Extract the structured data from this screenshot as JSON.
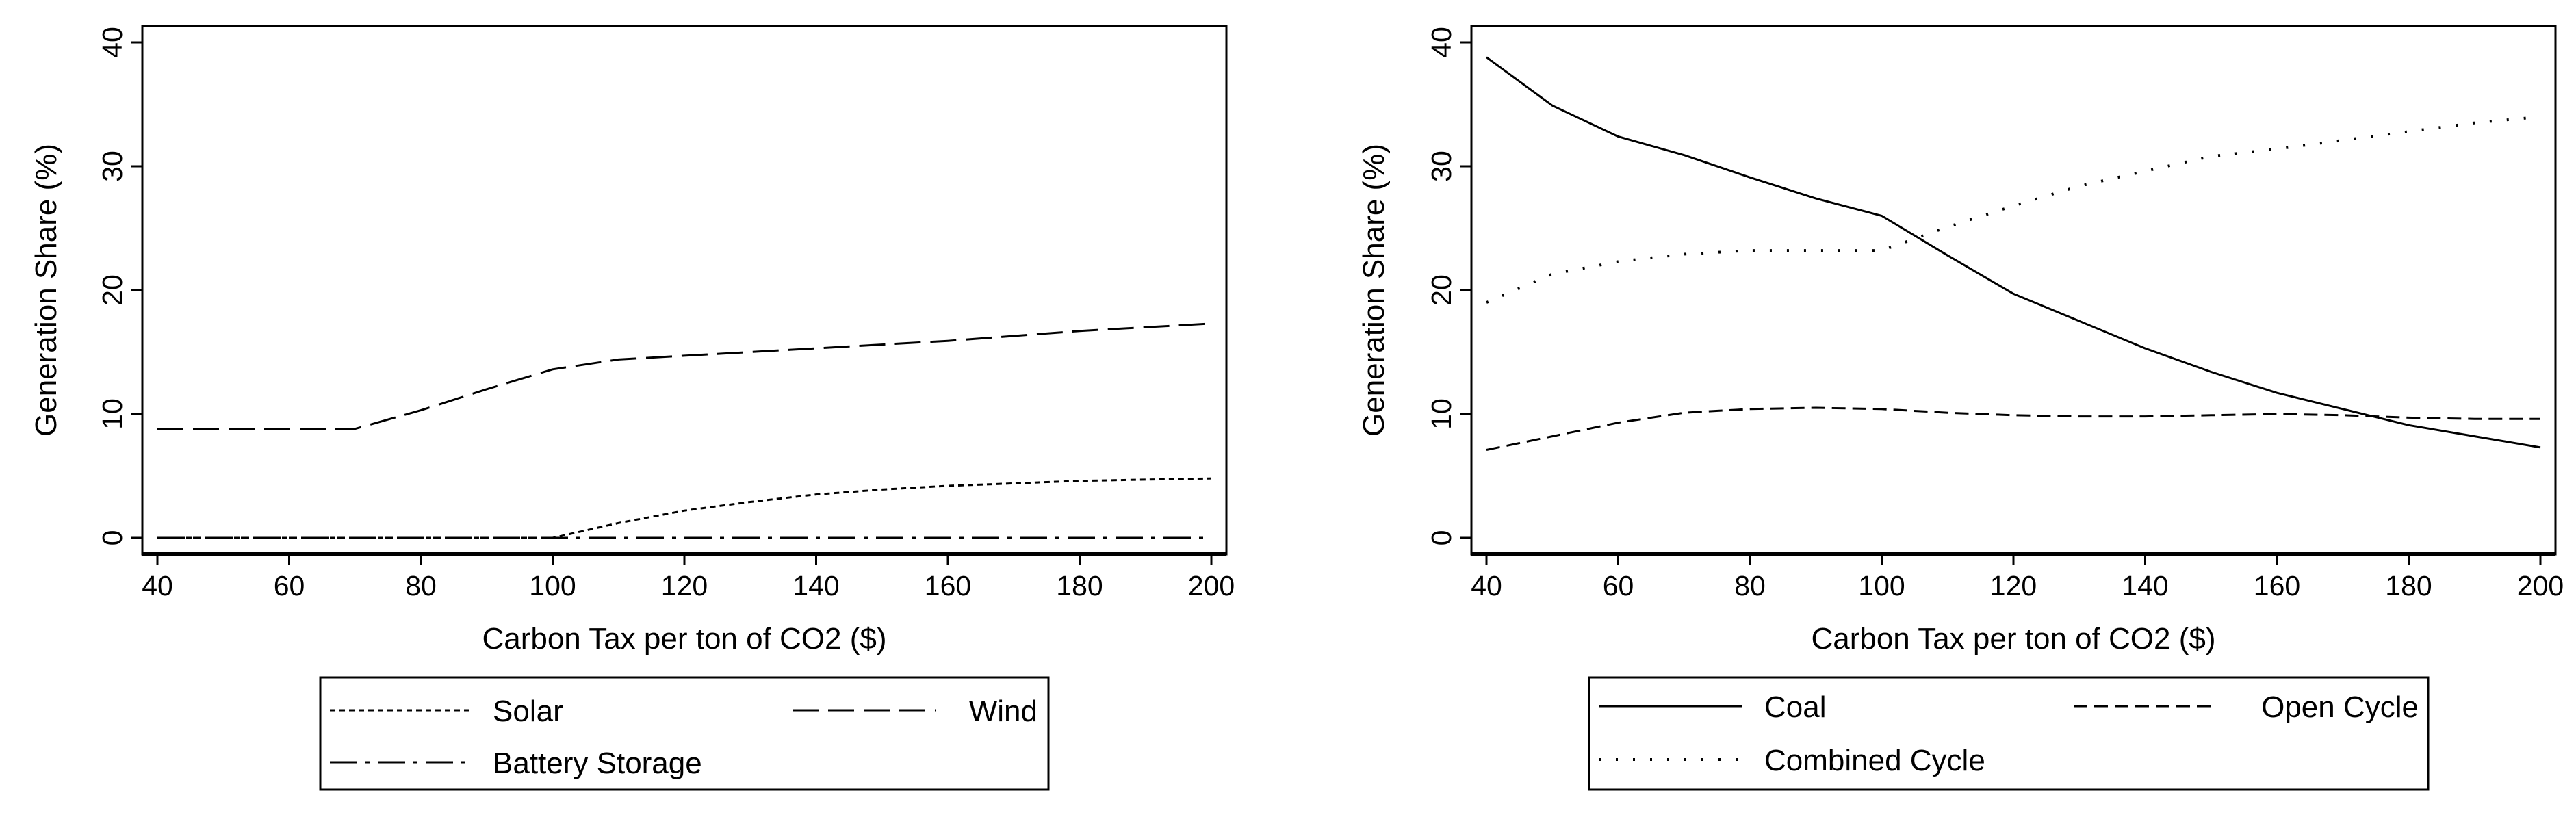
{
  "chart_data": [
    {
      "type": "line",
      "xlabel": "Carbon Tax per ton of CO2 ($)",
      "ylabel": "Generation Share (%)",
      "xlim": [
        40,
        200
      ],
      "ylim": [
        0,
        40
      ],
      "xticks": [
        "40",
        "60",
        "80",
        "100",
        "120",
        "140",
        "160",
        "180",
        "200"
      ],
      "yticks": [
        "0",
        "10",
        "20",
        "30",
        "40"
      ],
      "legend_position": "bottom",
      "series": [
        {
          "name": "Solar",
          "style": "short-dash",
          "x": [
            40,
            70,
            100,
            110,
            120,
            130,
            140,
            150,
            160,
            170,
            180,
            190,
            200
          ],
          "y": [
            0,
            0,
            0,
            1.2,
            2.2,
            2.9,
            3.5,
            3.9,
            4.2,
            4.4,
            4.6,
            4.7,
            4.8
          ]
        },
        {
          "name": "Wind",
          "style": "long-dash",
          "x": [
            40,
            70,
            80,
            90,
            100,
            110,
            120,
            130,
            140,
            150,
            160,
            170,
            180,
            190,
            200
          ],
          "y": [
            8.8,
            8.8,
            10.3,
            12,
            13.6,
            14.4,
            14.7,
            15,
            15.3,
            15.6,
            15.9,
            16.3,
            16.7,
            17,
            17.3
          ]
        },
        {
          "name": "Battery Storage",
          "style": "dash-dot",
          "x": [
            40,
            200
          ],
          "y": [
            0,
            0
          ]
        }
      ]
    },
    {
      "type": "line",
      "xlabel": "Carbon Tax per ton of CO2 ($)",
      "ylabel": "Generation Share (%)",
      "xlim": [
        40,
        200
      ],
      "ylim": [
        0,
        40
      ],
      "xticks": [
        "40",
        "60",
        "80",
        "100",
        "120",
        "140",
        "160",
        "180",
        "200"
      ],
      "yticks": [
        "0",
        "10",
        "20",
        "30",
        "40"
      ],
      "legend_position": "bottom",
      "series": [
        {
          "name": "Coal",
          "style": "solid",
          "x": [
            40,
            50,
            60,
            70,
            80,
            90,
            100,
            110,
            120,
            130,
            140,
            150,
            160,
            170,
            180,
            190,
            200
          ],
          "y": [
            38.8,
            34.9,
            32.4,
            30.9,
            29.1,
            27.4,
            26,
            22.8,
            19.7,
            17.5,
            15.3,
            13.4,
            11.7,
            10.4,
            9.1,
            8.2,
            7.3
          ]
        },
        {
          "name": "Open Cycle",
          "style": "dash",
          "x": [
            40,
            50,
            60,
            70,
            80,
            90,
            100,
            110,
            120,
            130,
            140,
            150,
            160,
            170,
            180,
            190,
            200
          ],
          "y": [
            7.1,
            8.2,
            9.3,
            10.1,
            10.4,
            10.5,
            10.4,
            10.1,
            9.9,
            9.8,
            9.8,
            9.9,
            10,
            9.9,
            9.7,
            9.6,
            9.6
          ]
        },
        {
          "name": "Combined Cycle",
          "style": "dot",
          "x": [
            40,
            50,
            60,
            70,
            80,
            90,
            100,
            110,
            120,
            130,
            140,
            150,
            160,
            170,
            180,
            190,
            200
          ],
          "y": [
            19,
            21.3,
            22.3,
            22.9,
            23.2,
            23.2,
            23.2,
            25.1,
            26.8,
            28.4,
            29.6,
            30.8,
            31.4,
            32.1,
            32.8,
            33.5,
            34
          ]
        }
      ]
    }
  ]
}
